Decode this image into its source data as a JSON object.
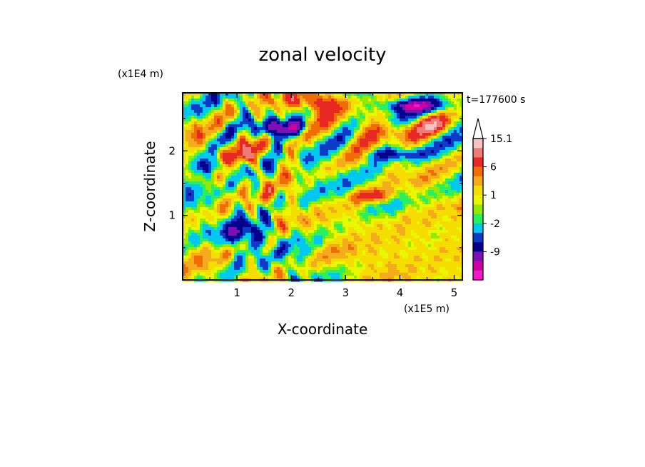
{
  "chart_data": {
    "type": "heatmap",
    "title": "zonal velocity",
    "time_label": "t=177600 s",
    "xlabel": "X-coordinate",
    "ylabel": "Z-coordinate",
    "x_unit": "(x1E5 m)",
    "y_unit": "(x1E4 m)",
    "xlim": [
      0,
      5.15
    ],
    "ylim": [
      0,
      2.9
    ],
    "x_ticks": [
      1,
      2,
      3,
      4,
      5
    ],
    "x_tick_labels": [
      "1",
      "2",
      "3",
      "4",
      "5"
    ],
    "y_ticks": [
      1,
      2
    ],
    "y_tick_labels": [
      "1",
      "2"
    ],
    "colorbar": {
      "tick_labels": [
        {
          "value": 15.1,
          "label": "15.1"
        },
        {
          "value": 6,
          "label": "6"
        },
        {
          "value": 1,
          "label": "1"
        },
        {
          "value": -2,
          "label": "-2"
        },
        {
          "value": -9,
          "label": "-9"
        }
      ],
      "levels": [
        {
          "value": 15.1,
          "color": "#f9c2c2"
        },
        {
          "value": 12,
          "color": "#f07c78"
        },
        {
          "value": 9,
          "color": "#e82822"
        },
        {
          "value": 6,
          "color": "#f06e00"
        },
        {
          "value": 4,
          "color": "#f4ac1e"
        },
        {
          "value": 2.5,
          "color": "#f6dd00"
        },
        {
          "value": 1,
          "color": "#e8f800"
        },
        {
          "value": 0,
          "color": "#96e800"
        },
        {
          "value": -1,
          "color": "#28f060"
        },
        {
          "value": -2,
          "color": "#00c8f0"
        },
        {
          "value": -4,
          "color": "#0a3cc8"
        },
        {
          "value": -6,
          "color": "#02008c"
        },
        {
          "value": -9,
          "color": "#7c10b4"
        },
        {
          "value": -12,
          "color": "#d000a0"
        },
        {
          "value": -15,
          "color": "#f018c8"
        }
      ],
      "extends_max": true
    }
  }
}
